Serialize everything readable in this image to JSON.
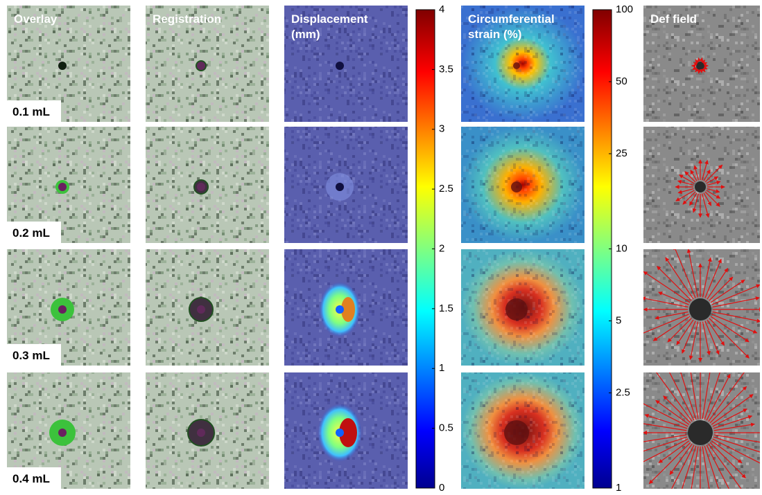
{
  "figure": {
    "columns": [
      [
        "Overlay"
      ],
      [
        "Registration"
      ],
      [
        "Displacement",
        "(mm)"
      ],
      [
        "Circumferential",
        "strain (%)"
      ],
      [
        "Def field"
      ]
    ],
    "rows": [
      "0.1 mL",
      "0.2 mL",
      "0.3 mL",
      "0.4 mL"
    ],
    "colorbars": [
      {
        "lim": [
          0,
          4
        ],
        "ticks": [
          0,
          0.5,
          1,
          1.5,
          2,
          2.5,
          3,
          3.5,
          4
        ],
        "scale": "linear"
      },
      {
        "lim": [
          1,
          100
        ],
        "ticks": [
          1,
          2.5,
          5,
          10,
          25,
          50,
          100
        ],
        "scale": "log"
      }
    ]
  }
}
